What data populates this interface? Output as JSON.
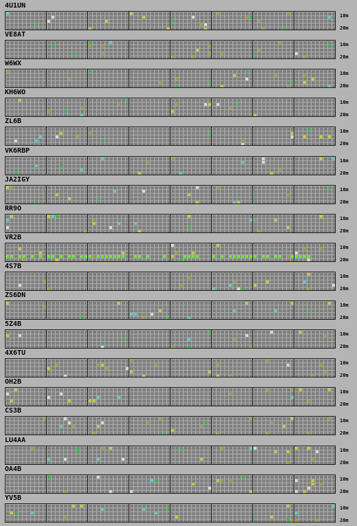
{
  "band_labels": {
    "top": "10m",
    "bottom": "20m"
  },
  "colors": {
    "background": "#b4b4b4",
    "grid_fill": "#7e7e7e",
    "grid_line": "#b0b0b0",
    "separator": "#1a1a1a",
    "yellow": "#c8c83c",
    "dim_yellow": "#9e9e3a",
    "green": "#2fb84a",
    "bright_green": "#6ee630",
    "cyan": "#5fc8c8",
    "white": "#d8d8d8"
  },
  "stations": [
    {
      "callsign": "4U1UN"
    },
    {
      "callsign": "VE8AT"
    },
    {
      "callsign": "W6WX"
    },
    {
      "callsign": "KH6WO"
    },
    {
      "callsign": "ZL6B"
    },
    {
      "callsign": "VK6RBP"
    },
    {
      "callsign": "JA2IGY"
    },
    {
      "callsign": "RR9O"
    },
    {
      "callsign": "VR2B"
    },
    {
      "callsign": "4S7B"
    },
    {
      "callsign": "ZS6DN"
    },
    {
      "callsign": "5Z4B"
    },
    {
      "callsign": "4X6TU"
    },
    {
      "callsign": "OH2B"
    },
    {
      "callsign": "CS3B"
    },
    {
      "callsign": "LU4AA"
    },
    {
      "callsign": "OA4B"
    },
    {
      "callsign": "YV5B"
    }
  ]
}
